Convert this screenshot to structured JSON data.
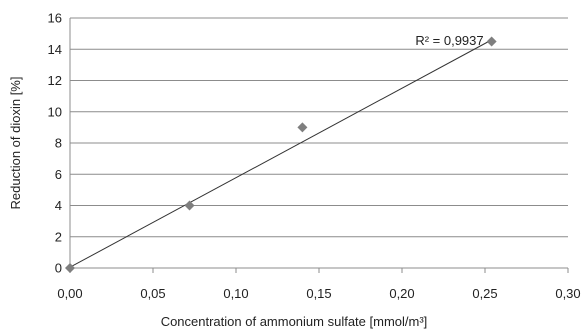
{
  "chart_data": {
    "type": "scatter",
    "xlabel": "Concentration of ammonium sulfate [mmol/m³]",
    "ylabel": "Reduction of dioxin [%]",
    "xlim": [
      0,
      0.3
    ],
    "ylim": [
      0,
      16
    ],
    "x_ticks": [
      "0,00",
      "0,05",
      "0,10",
      "0,15",
      "0,20",
      "0,25",
      "0,30"
    ],
    "y_ticks": [
      "0",
      "2",
      "4",
      "6",
      "8",
      "10",
      "12",
      "14",
      "16"
    ],
    "grid": "horizontal",
    "points": [
      {
        "x": 0.0,
        "y": 0.0
      },
      {
        "x": 0.072,
        "y": 4.0
      },
      {
        "x": 0.14,
        "y": 9.0
      },
      {
        "x": 0.254,
        "y": 14.5
      }
    ],
    "trendline": {
      "x": [
        0.0,
        0.254
      ],
      "y": [
        0.05,
        14.6
      ]
    },
    "annotation": "R² = 0,9937",
    "marker_color": "#7f7f7f"
  }
}
